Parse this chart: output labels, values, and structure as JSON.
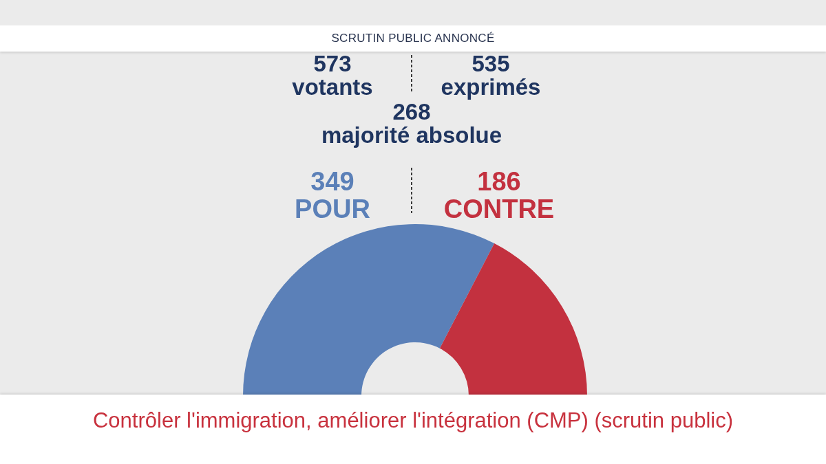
{
  "chart_data": {
    "type": "donut",
    "title": "SCRUTIN PUBLIC ANNONCÉ",
    "categories": [
      "POUR",
      "CONTRE"
    ],
    "values": [
      349,
      186
    ],
    "colors": [
      "#5b80b8",
      "#c3313f"
    ],
    "data_labels": true,
    "annotations": [
      "573 votants",
      "535 exprimés",
      "268 majorité absolue",
      "Contrôler l'immigration, améliorer l'intégration (CMP) (scrutin public)"
    ]
  }
}
